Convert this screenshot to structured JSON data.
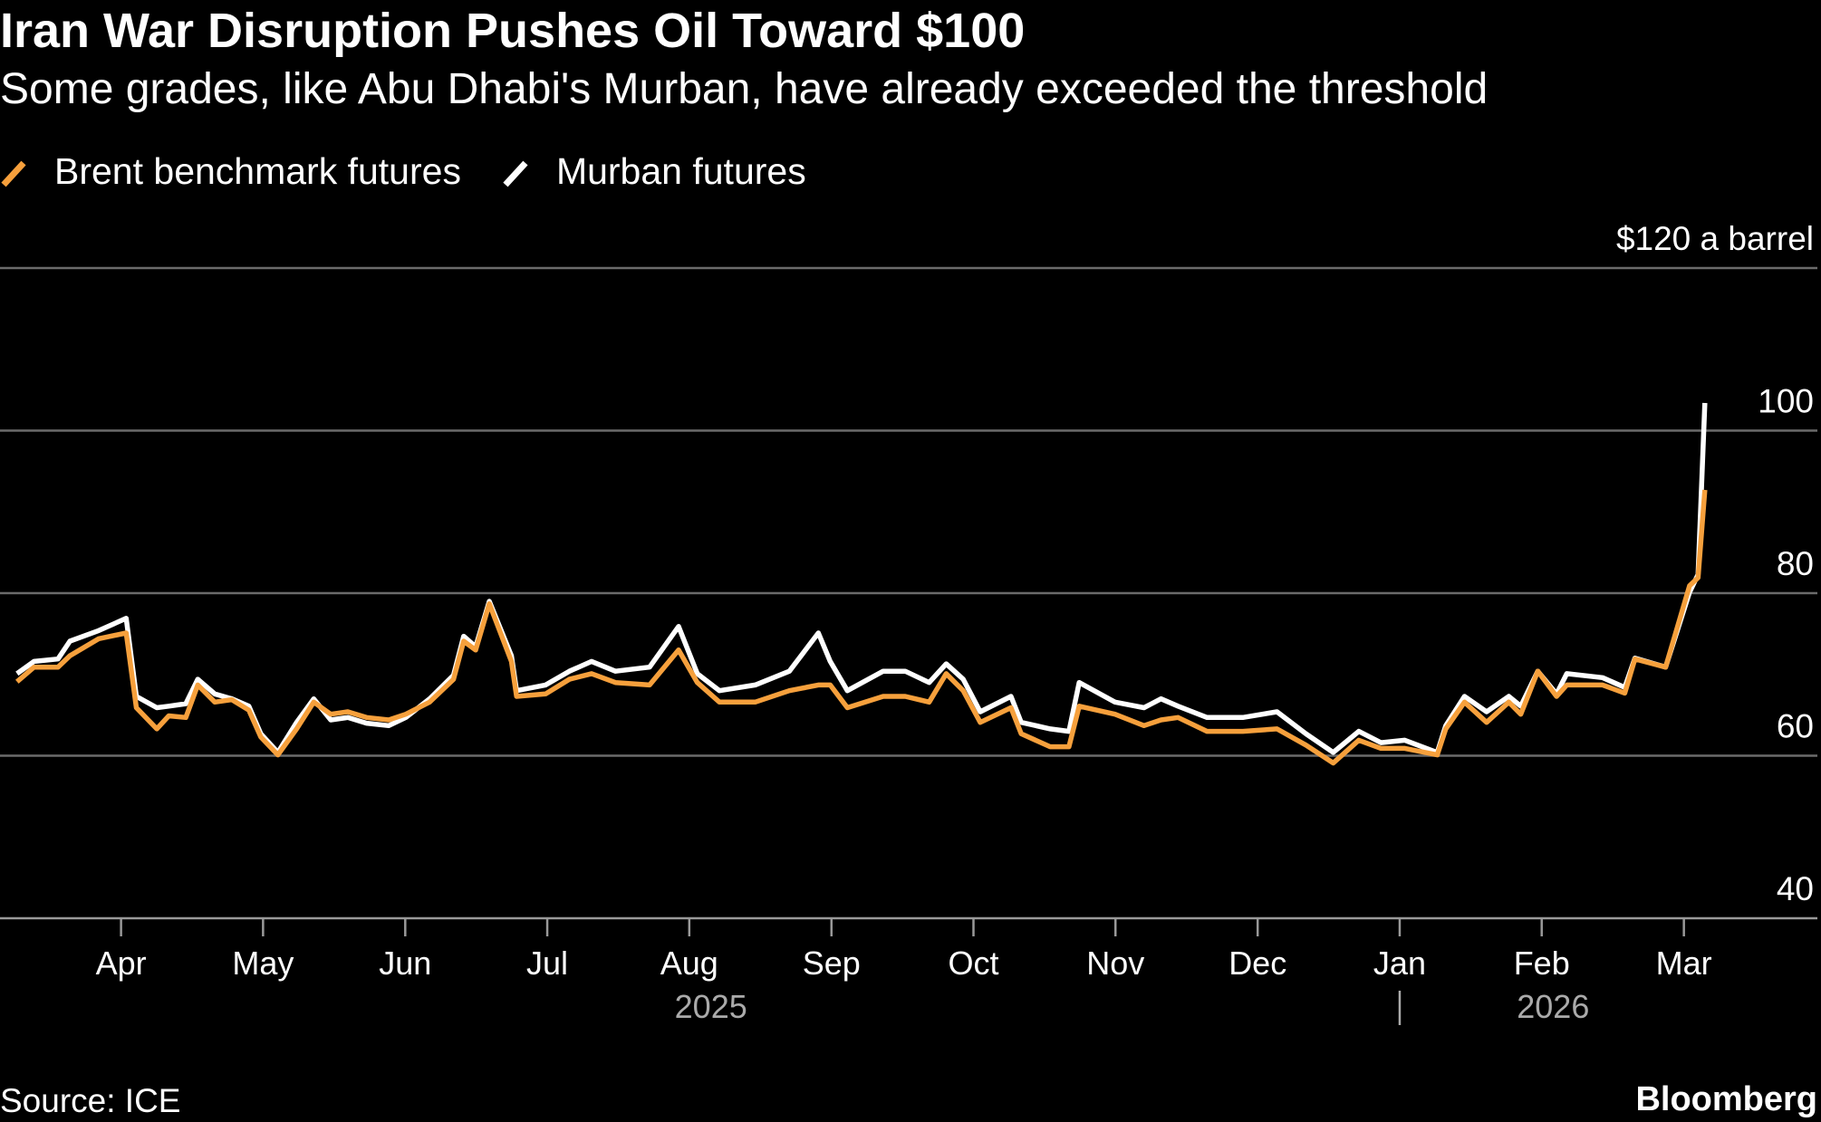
{
  "chart_data": {
    "type": "line",
    "title": "Iran War Disruption Pushes Oil Toward $100",
    "subtitle": "Some grades, like Abu Dhabi's Murban, have already exceeded the threshold",
    "source": "Source: ICE",
    "brand": "Bloomberg",
    "x": [
      2025.189,
      2025.199,
      2025.213,
      2025.22,
      2025.237,
      2025.253,
      2025.259,
      2025.271,
      2025.278,
      2025.288,
      2025.295,
      2025.305,
      2025.315,
      2025.325,
      2025.332,
      2025.342,
      2025.353,
      2025.363,
      2025.373,
      2025.383,
      2025.394,
      2025.407,
      2025.417,
      2025.431,
      2025.445,
      2025.451,
      2025.458,
      2025.466,
      2025.479,
      2025.482,
      2025.499,
      2025.513,
      2025.526,
      2025.54,
      2025.56,
      2025.577,
      2025.588,
      2025.601,
      2025.622,
      2025.642,
      2025.659,
      2025.666,
      2025.676,
      2025.697,
      2025.71,
      2025.724,
      2025.734,
      2025.744,
      2025.754,
      2025.772,
      2025.778,
      2025.795,
      2025.806,
      2025.812,
      2025.833,
      2025.85,
      2025.86,
      2025.87,
      2025.887,
      2025.908,
      2025.928,
      2025.945,
      2025.961,
      2025.976,
      2025.989,
      2026.003,
      2026.022,
      2026.027,
      2026.038,
      2026.051,
      2026.064,
      2026.071,
      2026.081,
      2026.092,
      2026.098,
      2026.119,
      2026.132,
      2026.138,
      2026.156,
      2026.17,
      2026.175,
      2026.179
    ],
    "series": [
      {
        "name": "Brent benchmark futures",
        "color": "#f6a03c",
        "values": [
          69.1,
          70.9,
          70.9,
          72.3,
          74.4,
          75.1,
          65.9,
          63.3,
          64.9,
          64.7,
          68.7,
          66.6,
          66.9,
          65.6,
          62.3,
          60.1,
          63.3,
          66.6,
          65.1,
          65.4,
          64.7,
          64.4,
          65.1,
          66.6,
          69.4,
          74.1,
          73.0,
          78.7,
          71.6,
          67.3,
          67.6,
          69.4,
          70.1,
          69.0,
          68.7,
          73.0,
          69.0,
          66.6,
          66.6,
          68.0,
          68.7,
          68.7,
          65.9,
          67.3,
          67.3,
          66.6,
          70.1,
          68.0,
          64.1,
          65.9,
          62.7,
          61.1,
          61.1,
          66.1,
          65.1,
          63.7,
          64.4,
          64.7,
          63.0,
          63.0,
          63.3,
          61.3,
          59.1,
          61.9,
          60.9,
          60.9,
          60.1,
          63.3,
          66.6,
          64.1,
          66.6,
          65.1,
          70.4,
          67.3,
          68.7,
          68.7,
          67.7,
          71.9,
          70.9,
          80.9,
          81.9,
          92.7
        ]
      },
      {
        "name": "Murban futures",
        "color": "#ffffff",
        "values": [
          70.1,
          71.6,
          71.9,
          74.1,
          75.4,
          76.9,
          67.3,
          65.9,
          66.1,
          66.4,
          69.4,
          67.6,
          67.0,
          66.1,
          62.7,
          60.4,
          64.1,
          67.0,
          64.4,
          64.7,
          64.0,
          63.7,
          64.7,
          67.0,
          69.9,
          74.7,
          73.4,
          79.0,
          72.3,
          68.0,
          68.7,
          70.4,
          71.6,
          70.4,
          70.9,
          75.9,
          70.1,
          68.0,
          68.7,
          70.4,
          75.1,
          71.6,
          68.0,
          70.4,
          70.4,
          69.0,
          71.3,
          69.4,
          65.4,
          67.3,
          64.1,
          63.3,
          63.0,
          69.0,
          66.6,
          65.9,
          67.0,
          66.1,
          64.7,
          64.7,
          65.4,
          62.7,
          60.4,
          63.0,
          61.6,
          61.9,
          60.4,
          63.7,
          67.3,
          65.4,
          67.3,
          66.1,
          70.4,
          67.6,
          70.1,
          69.6,
          68.4,
          72.0,
          70.9,
          80.1,
          82.3,
          103.4
        ]
      }
    ],
    "xlim": [
      2025.179,
      2026.245
    ],
    "xticks": [
      {
        "value": 2025.25,
        "label": "Apr"
      },
      {
        "value": 2025.3333,
        "label": "May"
      },
      {
        "value": 2025.4167,
        "label": "Jun"
      },
      {
        "value": 2025.5,
        "label": "Jul"
      },
      {
        "value": 2025.5833,
        "label": "Aug"
      },
      {
        "value": 2025.6667,
        "label": "Sep"
      },
      {
        "value": 2025.75,
        "label": "Oct"
      },
      {
        "value": 2025.8333,
        "label": "Nov"
      },
      {
        "value": 2025.9167,
        "label": "Dec"
      },
      {
        "value": 2026,
        "label": "Jan"
      },
      {
        "value": 2026.0833,
        "label": "Feb"
      },
      {
        "value": 2026.1667,
        "label": "Mar"
      }
    ],
    "year_labels": [
      {
        "value": 2025.596,
        "label": "2025"
      },
      {
        "value": 2026.09,
        "label": "2026"
      }
    ],
    "ylim": [
      40,
      120
    ],
    "yticks": [
      40,
      60,
      80,
      100,
      {
        "value": 120,
        "label": "$120 a barrel"
      }
    ],
    "grid": true
  }
}
